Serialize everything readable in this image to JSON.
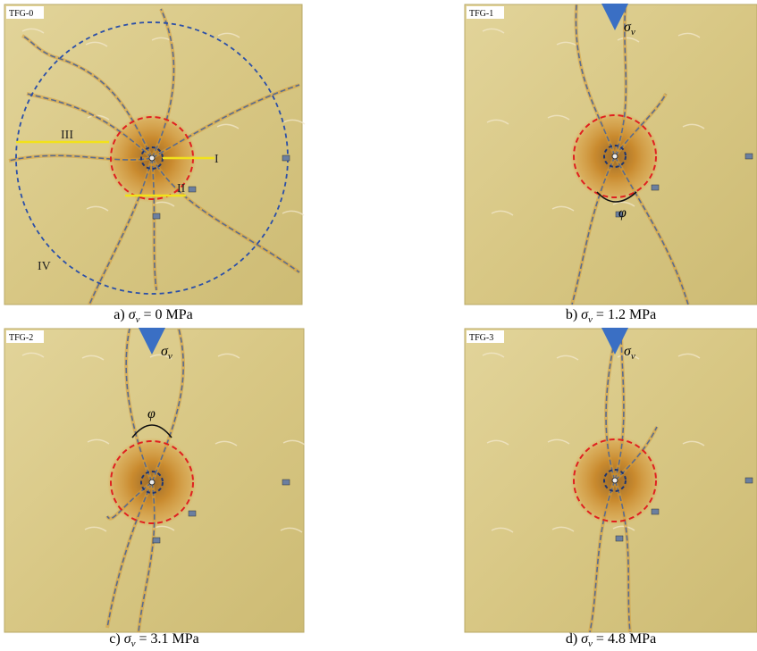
{
  "panels": [
    {
      "tag": "TFG-0",
      "caption": {
        "label": "a)",
        "symbol": "σ",
        "sub": "v",
        "rest": "= 0 MPa"
      },
      "zones": [
        "I",
        "II",
        "III",
        "IV"
      ]
    },
    {
      "tag": "TFG-1",
      "caption": {
        "label": "b)",
        "symbol": "σ",
        "sub": "v",
        "rest": "= 1.2 MPa"
      },
      "stress": {
        "symbol": "σ",
        "sub": "v"
      },
      "angle": "φ"
    },
    {
      "tag": "TFG-2",
      "caption": {
        "label": "c)",
        "symbol": "σ",
        "sub": "v",
        "rest": "= 3.1 MPa"
      },
      "stress": {
        "symbol": "σ",
        "sub": "v"
      },
      "angle": "φ"
    },
    {
      "tag": "TFG-3",
      "caption": {
        "label": "d)",
        "symbol": "σ",
        "sub": "v",
        "rest": "= 4.8 MPa"
      },
      "stress": {
        "symbol": "σ",
        "sub": "v"
      }
    }
  ]
}
